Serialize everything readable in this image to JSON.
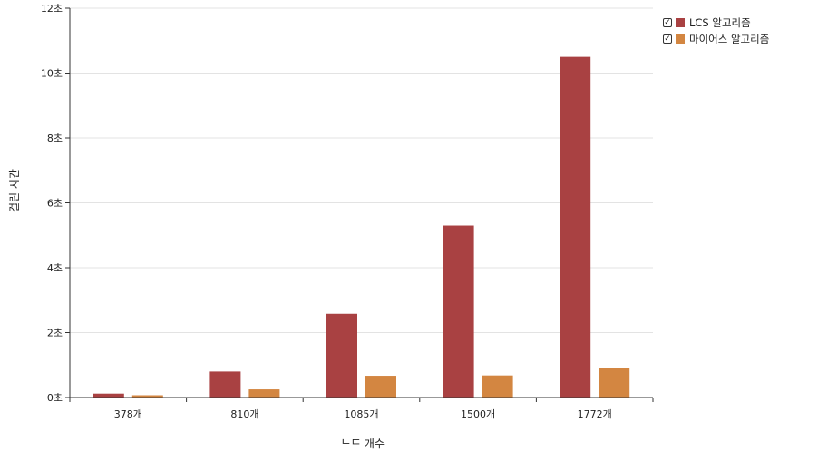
{
  "chart_data": {
    "type": "bar",
    "categories": [
      "378개",
      "810개",
      "1085개",
      "1500개",
      "1772개"
    ],
    "series": [
      {
        "name": "LCS 알고리즘",
        "color": "#a94142",
        "values": [
          0.12,
          0.8,
          2.58,
          5.3,
          10.5
        ]
      },
      {
        "name": "마이어스 알고리즘",
        "color": "#d38641",
        "values": [
          0.07,
          0.25,
          0.67,
          0.68,
          0.9
        ]
      }
    ],
    "xlabel": "노드 개수",
    "ylabel": "걸린 시간",
    "ylim": [
      0,
      12
    ],
    "yticks": [
      0,
      2,
      4,
      6,
      8,
      10,
      12
    ],
    "ytick_labels": [
      "0초",
      "2초",
      "4초",
      "6초",
      "8초",
      "10초",
      "12초"
    ],
    "grid": true,
    "legend_position": "top-right"
  },
  "legend": {
    "items": [
      {
        "label": "LCS 알고리즘",
        "color": "#a94142",
        "checked": true
      },
      {
        "label": "마이어스 알고리즘",
        "color": "#d38641",
        "checked": true
      }
    ],
    "check_glyph": "✓"
  }
}
